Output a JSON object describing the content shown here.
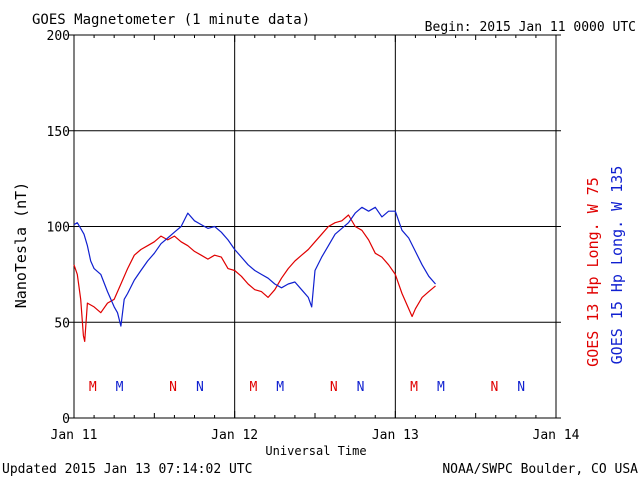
{
  "header": {
    "title": "GOES Magnetometer (1 minute data)",
    "begin": "Begin:  2015 Jan 11 0000 UTC"
  },
  "footer": {
    "updated": "Updated 2015 Jan 13 07:14:02 UTC",
    "credit": "NOAA/SWPC Boulder, CO USA"
  },
  "colors": {
    "goes13": "#e00000",
    "goes15": "#1020d0",
    "axis": "#000000"
  },
  "chart_data": {
    "type": "line",
    "xlabel": "Universal Time",
    "ylabel": "NanoTesla (nT)",
    "ylim": [
      0,
      200
    ],
    "xlim_hours": [
      0,
      72
    ],
    "y_ticks": [
      "0",
      "50",
      "100",
      "150",
      "200"
    ],
    "x_ticks": [
      {
        "hour": 0,
        "label": "Jan 11"
      },
      {
        "hour": 24,
        "label": "Jan 12"
      },
      {
        "hour": 48,
        "label": "Jan 13"
      },
      {
        "hour": 72,
        "label": "Jan 14"
      }
    ],
    "grid": true,
    "series": [
      {
        "name": "GOES 13 Hp  Long. W 75",
        "color": "#e00000",
        "points": [
          [
            0,
            80
          ],
          [
            0.5,
            75
          ],
          [
            1,
            62
          ],
          [
            1.4,
            43
          ],
          [
            1.6,
            40
          ],
          [
            2,
            60
          ],
          [
            3,
            58
          ],
          [
            4,
            55
          ],
          [
            5,
            60
          ],
          [
            6,
            62
          ],
          [
            7,
            70
          ],
          [
            8,
            78
          ],
          [
            9,
            85
          ],
          [
            10,
            88
          ],
          [
            11,
            90
          ],
          [
            12,
            92
          ],
          [
            13,
            95
          ],
          [
            14,
            93
          ],
          [
            15,
            95
          ],
          [
            16,
            92
          ],
          [
            17,
            90
          ],
          [
            18,
            87
          ],
          [
            19,
            85
          ],
          [
            20,
            83
          ],
          [
            21,
            85
          ],
          [
            22,
            84
          ],
          [
            23,
            78
          ],
          [
            24,
            77
          ],
          [
            25,
            74
          ],
          [
            26,
            70
          ],
          [
            27,
            67
          ],
          [
            28,
            66
          ],
          [
            29,
            63
          ],
          [
            30,
            67
          ],
          [
            31,
            73
          ],
          [
            32,
            78
          ],
          [
            33,
            82
          ],
          [
            34,
            85
          ],
          [
            35,
            88
          ],
          [
            36,
            92
          ],
          [
            37,
            96
          ],
          [
            38,
            100
          ],
          [
            39,
            102
          ],
          [
            40,
            103
          ],
          [
            41,
            106
          ],
          [
            42,
            100
          ],
          [
            43,
            98
          ],
          [
            44,
            93
          ],
          [
            45,
            86
          ],
          [
            46,
            84
          ],
          [
            47,
            80
          ],
          [
            48,
            75
          ],
          [
            49,
            65
          ],
          [
            50,
            57
          ],
          [
            50.5,
            53
          ],
          [
            51,
            57
          ],
          [
            52,
            63
          ],
          [
            53,
            66
          ],
          [
            54,
            69
          ]
        ]
      },
      {
        "name": "GOES 15 Hp  Long. W 135",
        "color": "#1020d0",
        "points": [
          [
            0,
            101
          ],
          [
            0.5,
            102
          ],
          [
            1,
            99
          ],
          [
            1.5,
            96
          ],
          [
            2,
            90
          ],
          [
            2.5,
            82
          ],
          [
            3,
            78
          ],
          [
            4,
            75
          ],
          [
            5,
            66
          ],
          [
            6,
            58
          ],
          [
            6.5,
            55
          ],
          [
            7,
            48
          ],
          [
            7.5,
            62
          ],
          [
            8,
            65
          ],
          [
            9,
            72
          ],
          [
            10,
            77
          ],
          [
            11,
            82
          ],
          [
            12,
            86
          ],
          [
            13,
            91
          ],
          [
            14,
            94
          ],
          [
            15,
            97
          ],
          [
            16,
            100
          ],
          [
            17,
            107
          ],
          [
            18,
            103
          ],
          [
            19,
            101
          ],
          [
            20,
            99
          ],
          [
            21,
            100
          ],
          [
            22,
            97
          ],
          [
            23,
            93
          ],
          [
            24,
            88
          ],
          [
            25,
            84
          ],
          [
            26,
            80
          ],
          [
            27,
            77
          ],
          [
            28,
            75
          ],
          [
            29,
            73
          ],
          [
            30,
            70
          ],
          [
            31,
            68
          ],
          [
            32,
            70
          ],
          [
            33,
            71
          ],
          [
            34,
            67
          ],
          [
            35,
            63
          ],
          [
            35.5,
            58
          ],
          [
            36,
            77
          ],
          [
            37,
            84
          ],
          [
            38,
            90
          ],
          [
            39,
            96
          ],
          [
            40,
            99
          ],
          [
            41,
            102
          ],
          [
            42,
            107
          ],
          [
            43,
            110
          ],
          [
            44,
            108
          ],
          [
            45,
            110
          ],
          [
            46,
            105
          ],
          [
            47,
            108
          ],
          [
            48,
            108
          ],
          [
            49,
            98
          ],
          [
            50,
            94
          ],
          [
            51,
            87
          ],
          [
            52,
            80
          ],
          [
            53,
            74
          ],
          [
            54,
            70
          ]
        ]
      }
    ],
    "markers": [
      {
        "label": "M",
        "hour": 2.8,
        "color": "#e00000"
      },
      {
        "label": "M",
        "hour": 6.8,
        "color": "#1020d0"
      },
      {
        "label": "N",
        "hour": 14.8,
        "color": "#e00000"
      },
      {
        "label": "N",
        "hour": 18.8,
        "color": "#1020d0"
      },
      {
        "label": "M",
        "hour": 26.8,
        "color": "#e00000"
      },
      {
        "label": "M",
        "hour": 30.8,
        "color": "#1020d0"
      },
      {
        "label": "N",
        "hour": 38.8,
        "color": "#e00000"
      },
      {
        "label": "N",
        "hour": 42.8,
        "color": "#1020d0"
      },
      {
        "label": "M",
        "hour": 50.8,
        "color": "#e00000"
      },
      {
        "label": "M",
        "hour": 54.8,
        "color": "#1020d0"
      },
      {
        "label": "N",
        "hour": 62.8,
        "color": "#e00000"
      },
      {
        "label": "N",
        "hour": 66.8,
        "color": "#1020d0"
      }
    ]
  }
}
